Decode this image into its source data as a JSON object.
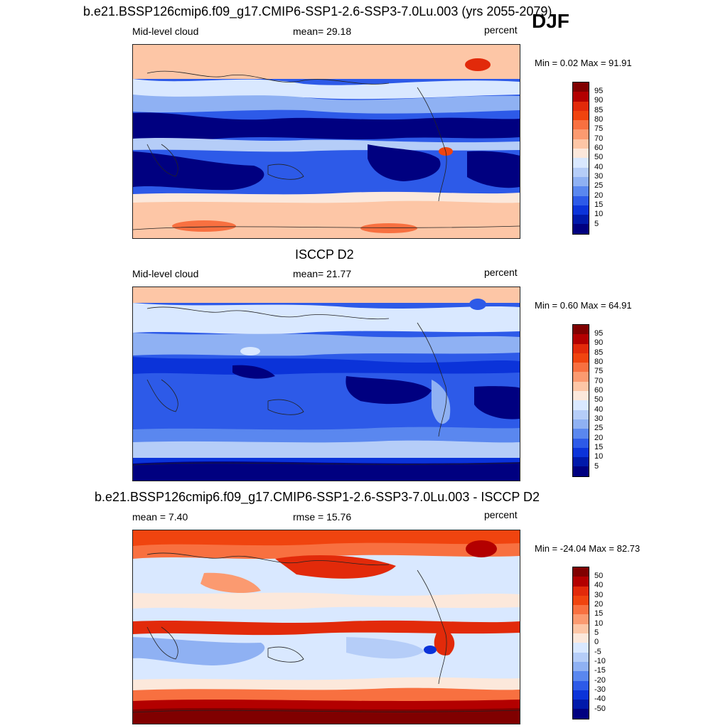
{
  "season": "DJF",
  "panels": [
    {
      "title": "b.e21.BSSP126cmip6.f09_g17.CMIP6-SSP1-2.6-SSP3-7.0Lu.003 (yrs 2055-2079)",
      "left_label": "Mid-level cloud",
      "center_label": "mean=  29.18",
      "units": "percent",
      "minmax": "Min =   0.02 Max =  91.91",
      "levels": [
        "95",
        "90",
        "85",
        "80",
        "75",
        "70",
        "60",
        "50",
        "40",
        "30",
        "25",
        "20",
        "15",
        "10",
        "5"
      ],
      "colors": [
        "#800000",
        "#b30000",
        "#e22a0a",
        "#f0440f",
        "#f87040",
        "#fb9a70",
        "#fdc6a6",
        "#fce8db",
        "#d9e8ff",
        "#b5cdf8",
        "#8fb1f3",
        "#5a87ef",
        "#2d5ae8",
        "#0b33d9",
        "#0019aa",
        "#000080"
      ]
    },
    {
      "title": "ISCCP D2",
      "left_label": "Mid-level cloud",
      "center_label": "mean=  21.77",
      "units": "percent",
      "minmax": "Min =   0.60 Max =  64.91",
      "levels": [
        "95",
        "90",
        "85",
        "80",
        "75",
        "70",
        "60",
        "50",
        "40",
        "30",
        "25",
        "20",
        "15",
        "10",
        "5"
      ],
      "colors": [
        "#800000",
        "#b30000",
        "#e22a0a",
        "#f0440f",
        "#f87040",
        "#fb9a70",
        "#fdc6a6",
        "#fce8db",
        "#d9e8ff",
        "#b5cdf8",
        "#8fb1f3",
        "#5a87ef",
        "#2d5ae8",
        "#0b33d9",
        "#0019aa",
        "#000080"
      ]
    },
    {
      "title": "b.e21.BSSP126cmip6.f09_g17.CMIP6-SSP1-2.6-SSP3-7.0Lu.003 - ISCCP D2",
      "left_label": "mean =   7.40",
      "center_label": "rmse =  15.76",
      "units": "percent",
      "minmax": "Min = -24.04 Max =  82.73",
      "levels": [
        "50",
        "40",
        "30",
        "20",
        "15",
        "10",
        "5",
        "0",
        "-5",
        "-10",
        "-15",
        "-20",
        "-30",
        "-40",
        "-50"
      ],
      "colors": [
        "#800000",
        "#b30000",
        "#e22a0a",
        "#f0440f",
        "#f87040",
        "#fb9a70",
        "#fdc6a6",
        "#fce8db",
        "#d9e8ff",
        "#b5cdf8",
        "#8fb1f3",
        "#5a87ef",
        "#2d5ae8",
        "#0b33d9",
        "#0019aa",
        "#000080"
      ]
    }
  ]
}
